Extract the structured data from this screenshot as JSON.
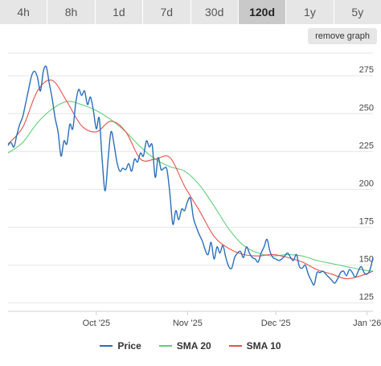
{
  "range_tabs": [
    {
      "label": "4h",
      "active": false
    },
    {
      "label": "8h",
      "active": false
    },
    {
      "label": "1d",
      "active": false
    },
    {
      "label": "7d",
      "active": false
    },
    {
      "label": "30d",
      "active": false
    },
    {
      "label": "120d",
      "active": true
    },
    {
      "label": "1y",
      "active": false
    },
    {
      "label": "5y",
      "active": false
    }
  ],
  "remove_graph_label": "remove graph",
  "colors": {
    "price": "#2a6ebb",
    "sma20": "#5fcf7a",
    "sma10": "#e8504a",
    "grid": "#e6e6e6"
  },
  "chart_data": {
    "type": "line",
    "x_ticks": [
      {
        "label": "Oct '25",
        "x": 30
      },
      {
        "label": "Nov '25",
        "x": 61
      },
      {
        "label": "Dec '25",
        "x": 91
      },
      {
        "label": "Jan '26",
        "x": 122
      }
    ],
    "y_ticks": [
      125,
      150,
      175,
      200,
      225,
      250,
      275
    ],
    "ylim": [
      120,
      290
    ],
    "xlim": [
      0,
      124
    ],
    "grid": "horizontal",
    "legend_position": "bottom-center",
    "series": [
      {
        "name": "Price",
        "color_key": "price",
        "x": [
          0,
          1,
          2,
          3,
          4,
          5,
          6,
          7,
          8,
          9,
          10,
          11,
          12,
          13,
          14,
          15,
          16,
          17,
          18,
          19,
          20,
          21,
          22,
          23,
          24,
          25,
          26,
          27,
          28,
          29,
          30,
          31,
          32,
          33,
          34,
          35,
          36,
          37,
          38,
          39,
          40,
          41,
          42,
          43,
          44,
          45,
          46,
          47,
          48,
          49,
          50,
          51,
          52,
          53,
          54,
          55,
          56,
          57,
          58,
          59,
          60,
          61,
          62,
          63,
          64,
          65,
          66,
          67,
          68,
          69,
          70,
          71,
          72,
          73,
          74,
          75,
          76,
          77,
          78,
          79,
          80,
          81,
          82,
          83,
          84,
          85,
          86,
          87,
          88,
          89,
          90,
          91,
          92,
          93,
          94,
          95,
          96,
          97,
          98,
          99,
          100,
          101,
          102,
          103,
          104,
          105,
          106,
          107,
          108,
          109,
          110,
          111,
          112,
          113,
          114,
          115,
          116,
          117,
          118,
          119,
          120,
          121,
          122,
          123,
          124
        ],
        "values": [
          229,
          231,
          228,
          236,
          243,
          248,
          257,
          266,
          275,
          278,
          274,
          265,
          278,
          281,
          270,
          260,
          247,
          238,
          222,
          232,
          230,
          243,
          240,
          257,
          266,
          262,
          265,
          256,
          261,
          252,
          240,
          247,
          219,
          199,
          220,
          238,
          230,
          218,
          212,
          214,
          213,
          217,
          212,
          220,
          218,
          224,
          222,
          232,
          228,
          229,
          208,
          221,
          213,
          214,
          213,
          197,
          177,
          186,
          180,
          187,
          186,
          192,
          194,
          181,
          175,
          170,
          166,
          160,
          157,
          165,
          154,
          162,
          158,
          163,
          155,
          149,
          148,
          155,
          158,
          159,
          155,
          162,
          158,
          155,
          154,
          152,
          158,
          162,
          167,
          159,
          155,
          154,
          153,
          154,
          156,
          158,
          155,
          153,
          157,
          149,
          148,
          150,
          144,
          140,
          137,
          145,
          145,
          146,
          144,
          142,
          140,
          138,
          141,
          145,
          146,
          143,
          147,
          145,
          142,
          146,
          149,
          145,
          144,
          147,
          155
        ],
        "smooth": true
      },
      {
        "name": "SMA 20",
        "color_key": "sma20",
        "x": [
          0,
          5,
          10,
          15,
          20,
          25,
          30,
          35,
          40,
          45,
          50,
          55,
          60,
          65,
          70,
          75,
          80,
          85,
          90,
          95,
          100,
          105,
          110,
          115,
          120,
          124
        ],
        "values": [
          224,
          231,
          244,
          253,
          258,
          256,
          252,
          246,
          238,
          228,
          220,
          215,
          212,
          203,
          189,
          174,
          163,
          158,
          156,
          157,
          156,
          153,
          151,
          149,
          147,
          146
        ]
      },
      {
        "name": "SMA 10",
        "color_key": "sma10",
        "x": [
          0,
          5,
          10,
          15,
          20,
          25,
          30,
          35,
          40,
          45,
          50,
          55,
          60,
          65,
          70,
          75,
          80,
          85,
          90,
          95,
          100,
          105,
          110,
          115,
          120,
          124
        ],
        "values": [
          230,
          241,
          265,
          272,
          258,
          242,
          238,
          245,
          238,
          220,
          220,
          221,
          202,
          186,
          169,
          161,
          157,
          156,
          157,
          155,
          152,
          147,
          144,
          141,
          143,
          146
        ]
      }
    ]
  }
}
